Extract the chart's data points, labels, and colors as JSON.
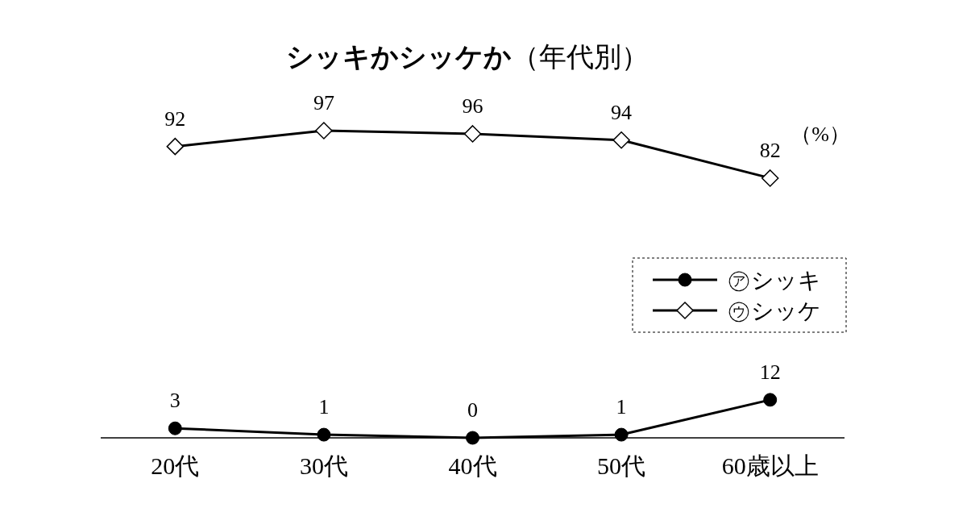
{
  "chart_data": {
    "type": "line",
    "title": "**シッキかシッケか**（年代別）",
    "categories": [
      "20代",
      "30代",
      "40代",
      "50代",
      "60歳以上"
    ],
    "series": [
      {
        "name": "㋐シッキ",
        "color": "#000000",
        "marker": "circle",
        "values": [
          3,
          1,
          0,
          1,
          12
        ]
      },
      {
        "name": "㋒シッケ",
        "color": "#000000",
        "marker": "diamond",
        "values": [
          92,
          97,
          96,
          94,
          82
        ]
      }
    ],
    "data_labels": true,
    "legend": "right",
    "grid": false,
    "annotations": [
      "（%）"
    ]
  }
}
